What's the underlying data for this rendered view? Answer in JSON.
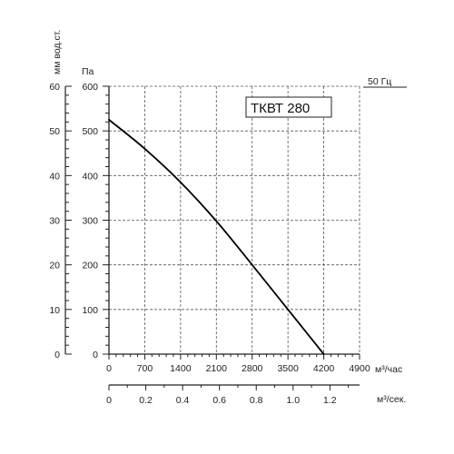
{
  "chart_data": {
    "type": "line",
    "model_label": "ТКВТ 280",
    "frequency_label": "50 Гц",
    "x_primary": {
      "unit": "м³/час",
      "ticks": [
        "0",
        "700",
        "1400",
        "2100",
        "2800",
        "3500",
        "4200",
        "4900"
      ],
      "range": [
        0,
        4900
      ]
    },
    "x_secondary": {
      "unit": "м³/сек.",
      "ticks": [
        "0",
        "0.2",
        "0.4",
        "0.6",
        "0.8",
        "1.0",
        "1.2"
      ],
      "range": [
        0,
        1.361
      ]
    },
    "y_primary": {
      "unit": "Па",
      "ticks": [
        "0",
        "100",
        "200",
        "300",
        "400",
        "500",
        "600"
      ],
      "range": [
        0,
        600
      ]
    },
    "y_secondary": {
      "unit": "мм вод.ст.",
      "ticks": [
        "0",
        "10",
        "20",
        "30",
        "40",
        "50",
        "60"
      ]
    },
    "grid": true,
    "series": [
      {
        "x": [
          0,
          700,
          1400,
          2100,
          2800,
          3500,
          4200
        ],
        "y": [
          525,
          460,
          385,
          298,
          200,
          100,
          0
        ]
      }
    ]
  }
}
